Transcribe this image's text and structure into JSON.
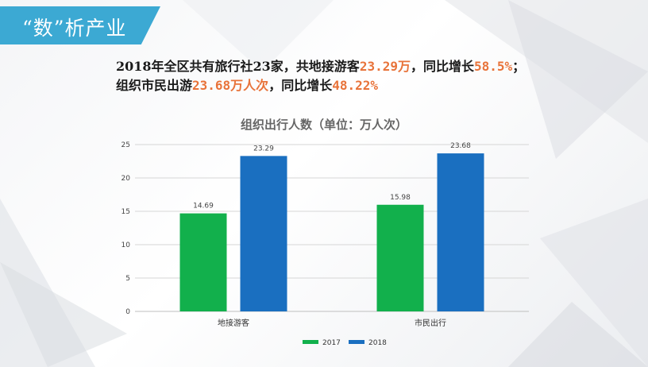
{
  "header": {
    "title": "“数”析产业"
  },
  "summary": {
    "line1": [
      {
        "text": "2018年全区共有旅行社23家，共地接游客",
        "hl": false
      },
      {
        "text": "23.29万",
        "hl": true
      },
      {
        "text": "，同比增长",
        "hl": false
      },
      {
        "text": "58.5%",
        "hl": true
      },
      {
        "text": "；",
        "hl": false
      }
    ],
    "line2": [
      {
        "text": "组织市民出游",
        "hl": false
      },
      {
        "text": "23.68万人次",
        "hl": true
      },
      {
        "text": "，同比增长",
        "hl": false
      },
      {
        "text": "48.22%",
        "hl": true
      }
    ],
    "highlight_color": "#e8733a"
  },
  "chart_data": {
    "type": "bar",
    "title": "组织出行人数（单位：万人次）",
    "categories": [
      "地接游客",
      "市民出行"
    ],
    "series": [
      {
        "name": "2017",
        "values": [
          14.69,
          15.98
        ],
        "color": "#12b04c"
      },
      {
        "name": "2018",
        "values": [
          23.29,
          23.68
        ],
        "color": "#1a6fc0"
      }
    ],
    "ylim": [
      0,
      25
    ],
    "yticks": [
      0,
      5,
      10,
      15,
      20,
      25
    ],
    "grid": true,
    "legend": "bottom-center",
    "xlabel": "",
    "ylabel": ""
  }
}
